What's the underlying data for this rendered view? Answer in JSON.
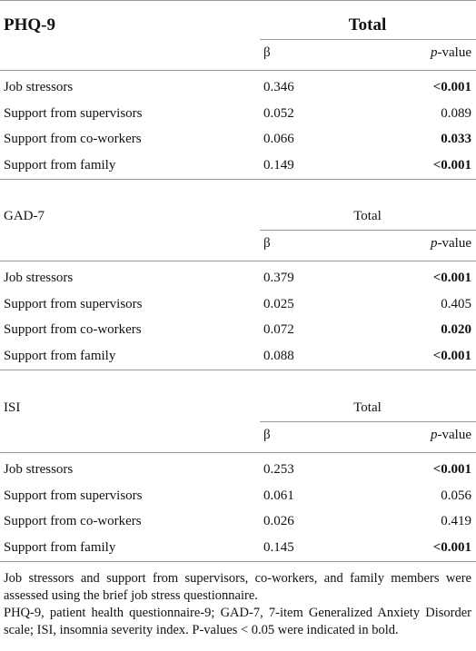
{
  "sections": [
    {
      "title": "PHQ-9",
      "total": "Total",
      "emphasis": true,
      "beta_header": "β",
      "p_header": "p-value",
      "rows": [
        {
          "label": "Job stressors",
          "beta": "0.346",
          "p": "<0.001",
          "p_bold": true
        },
        {
          "label": "Support from supervisors",
          "beta": "0.052",
          "p": "0.089",
          "p_bold": false
        },
        {
          "label": "Support from co-workers",
          "beta": "0.066",
          "p": "0.033",
          "p_bold": true
        },
        {
          "label": "Support from family",
          "beta": "0.149",
          "p": "<0.001",
          "p_bold": true
        }
      ]
    },
    {
      "title": "GAD-7",
      "total": "Total",
      "emphasis": false,
      "beta_header": "β",
      "p_header": "p-value",
      "rows": [
        {
          "label": "Job stressors",
          "beta": "0.379",
          "p": "<0.001",
          "p_bold": true
        },
        {
          "label": "Support from supervisors",
          "beta": "0.025",
          "p": "0.405",
          "p_bold": false
        },
        {
          "label": "Support from co-workers",
          "beta": "0.072",
          "p": "0.020",
          "p_bold": true
        },
        {
          "label": "Support from family",
          "beta": "0.088",
          "p": "<0.001",
          "p_bold": true
        }
      ]
    },
    {
      "title": "ISI",
      "total": "Total",
      "emphasis": false,
      "beta_header": "β",
      "p_header": "p-value",
      "rows": [
        {
          "label": "Job stressors",
          "beta": "0.253",
          "p": "<0.001",
          "p_bold": true
        },
        {
          "label": "Support from supervisors",
          "beta": "0.061",
          "p": "0.056",
          "p_bold": false
        },
        {
          "label": "Support from co-workers",
          "beta": "0.026",
          "p": "0.419",
          "p_bold": false
        },
        {
          "label": "Support from family",
          "beta": "0.145",
          "p": "<0.001",
          "p_bold": true
        }
      ]
    }
  ],
  "footnotes": [
    "Job stressors and support from supervisors, co-workers, and family members were assessed using the brief job stress questionnaire.",
    "PHQ-9, patient health questionnaire-9; GAD-7, 7-item Generalized Anxiety Disorder scale; ISI, insomnia severity index. P-values < 0.05 were indicated in bold."
  ]
}
